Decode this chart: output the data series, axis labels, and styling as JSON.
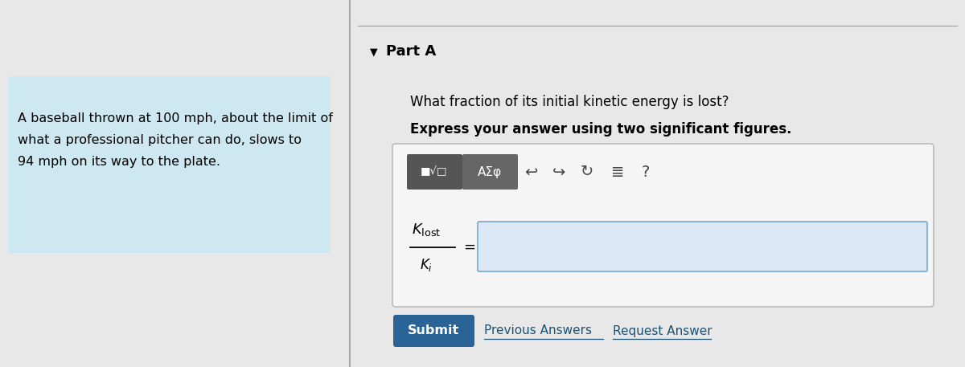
{
  "bg_color": "#e8e8e8",
  "left_panel_color": "#cde8f0",
  "left_text_lines": [
    "A baseball thrown at 100 mph, about the limit of",
    "what a professional pitcher can do, slows to",
    "94 mph on its way to the plate."
  ],
  "part_label": "Part A",
  "question1": "What fraction of its initial kinetic energy is lost?",
  "question2": "Express your answer using two significant figures.",
  "submit_label": "Submit",
  "prev_answers": "Previous Answers",
  "req_answer": "Request Answer",
  "submit_bg": "#2a6496",
  "input_bg": "#dce8f5",
  "toolbar_bg": "#555555",
  "toolbar_bg2": "#666666",
  "divider_color": "#aaaaaa",
  "border_color": "#bbbbbb",
  "link_color": "#1a5276"
}
